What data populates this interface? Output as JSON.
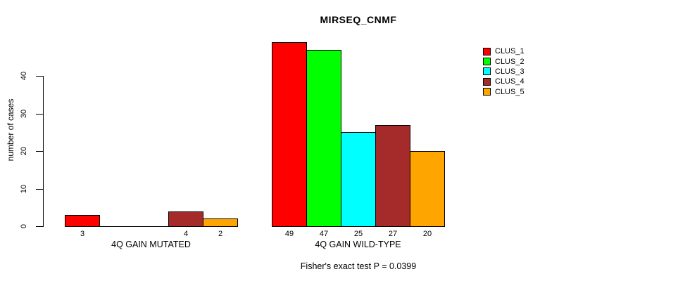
{
  "chart_data": {
    "type": "bar",
    "title": "MIRSEQ_CNMF",
    "ylabel": "number of cases",
    "xlabel": "",
    "ylim": [
      0,
      49
    ],
    "yticks": [
      0,
      10,
      20,
      30,
      40
    ],
    "grid": false,
    "legend_position": "top-right",
    "categories": [
      "4Q GAIN MUTATED",
      "4Q GAIN WILD-TYPE"
    ],
    "series": [
      {
        "name": "CLUS_1",
        "color": "#FF0000",
        "values": [
          3,
          49
        ]
      },
      {
        "name": "CLUS_2",
        "color": "#00FF00",
        "values": [
          0,
          47
        ]
      },
      {
        "name": "CLUS_3",
        "color": "#00FFFF",
        "values": [
          0,
          25
        ]
      },
      {
        "name": "CLUS_4",
        "color": "#A52A2A",
        "values": [
          4,
          27
        ]
      },
      {
        "name": "CLUS_5",
        "color": "#FFA500",
        "values": [
          2,
          20
        ]
      }
    ],
    "bar_value_labels": {
      "4Q GAIN MUTATED": [
        "3",
        "",
        "",
        "4",
        "2"
      ],
      "4Q GAIN WILD-TYPE": [
        "49",
        "47",
        "25",
        "27",
        "20"
      ]
    },
    "zero_height_bars_drawn_as_baseline_segments": true,
    "annotation": "Fisher's exact test P = 0.0399",
    "bar_border_color": "#000000",
    "background_color": "#FFFFFF"
  }
}
